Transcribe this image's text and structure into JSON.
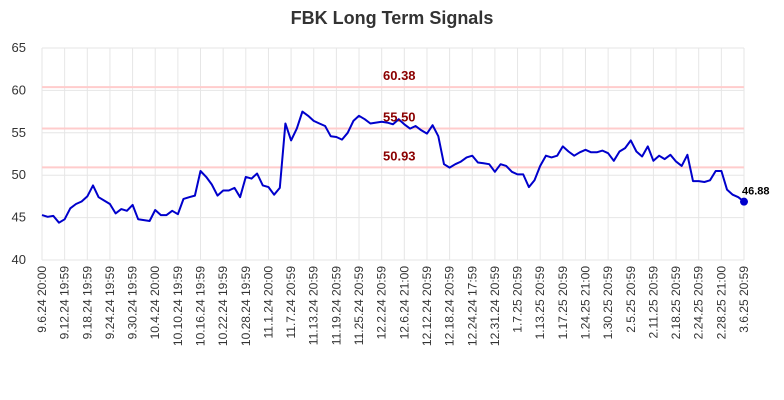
{
  "chart_data": {
    "type": "line",
    "title": "FBK Long Term Signals",
    "xlabel": "",
    "ylabel": "",
    "ylim": [
      40,
      65
    ],
    "yticks": [
      40,
      45,
      50,
      55,
      60,
      65
    ],
    "grid": true,
    "x_tick_labels": [
      "9.6.24 20:00",
      "9.12.24 19:59",
      "9.18.24 19:59",
      "9.24.24 19:59",
      "9.30.24 19:59",
      "10.4.24 20:00",
      "10.10.24 19:59",
      "10.16.24 19:59",
      "10.22.24 19:59",
      "10.28.24 19:59",
      "11.1.24 20:00",
      "11.7.24 20:59",
      "11.13.24 20:59",
      "11.19.24 20:59",
      "11.25.24 20:59",
      "12.2.24 20:59",
      "12.6.24 21:00",
      "12.12.24 20:59",
      "12.18.24 20:59",
      "12.24.24 17:59",
      "12.31.24 20:59",
      "1.7.25 20:59",
      "1.13.25 20:59",
      "1.17.25 20:59",
      "1.24.25 21:00",
      "1.30.25 20:59",
      "2.5.25 20:59",
      "2.11.25 20:59",
      "2.18.25 20:59",
      "2.24.25 20:59",
      "2.28.25 21:00",
      "3.6.25 20:59"
    ],
    "series": [
      {
        "color": "#0000cc",
        "values": [
          45.3,
          45.1,
          45.2,
          44.4,
          44.8,
          46.1,
          46.6,
          46.9,
          47.5,
          48.8,
          47.4,
          47.0,
          46.6,
          45.5,
          46.0,
          45.8,
          46.5,
          44.8,
          44.7,
          44.6,
          45.9,
          45.3,
          45.3,
          45.8,
          45.4,
          47.2,
          47.4,
          47.6,
          50.5,
          49.8,
          48.9,
          47.6,
          48.2,
          48.2,
          48.5,
          47.4,
          49.8,
          49.6,
          50.2,
          48.8,
          48.6,
          47.7,
          48.5,
          56.1,
          54.1,
          55.5,
          57.5,
          57.0,
          56.4,
          56.1,
          55.8,
          54.6,
          54.5,
          54.2,
          55.0,
          56.4,
          57.0,
          56.6,
          56.1,
          56.2,
          56.3,
          56.2,
          56.0,
          56.6,
          56.0,
          55.5,
          55.8,
          55.3,
          54.9,
          55.9,
          54.6,
          51.3,
          50.9,
          51.3,
          51.6,
          52.1,
          52.3,
          51.5,
          51.4,
          51.3,
          50.4,
          51.3,
          51.1,
          50.4,
          50.1,
          50.1,
          48.6,
          49.4,
          51.1,
          52.3,
          52.1,
          52.3,
          53.4,
          52.8,
          52.3,
          52.7,
          53.0,
          52.7,
          52.7,
          52.9,
          52.6,
          51.7,
          52.8,
          53.2,
          54.1,
          52.8,
          52.2,
          53.4,
          51.7,
          52.3,
          51.9,
          52.4,
          51.6,
          51.1,
          52.4,
          49.3,
          49.3,
          49.2,
          49.4,
          50.5,
          50.5,
          48.3,
          47.7,
          47.4,
          46.88
        ]
      }
    ],
    "levels": [
      {
        "value": 60.38,
        "label": "60.38"
      },
      {
        "value": 55.5,
        "label": "55.50"
      },
      {
        "value": 50.93,
        "label": "50.93"
      }
    ],
    "last_value_label": "46.88",
    "level_color": "#ffcccc",
    "level_label_color": "#8b0000"
  }
}
